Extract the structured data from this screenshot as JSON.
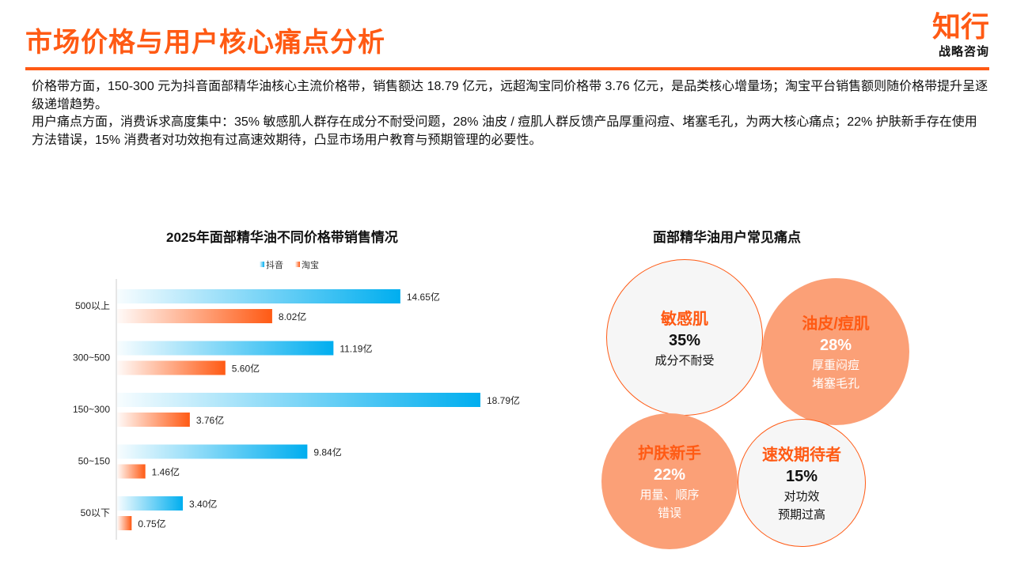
{
  "header": {
    "title": "市场价格与用户核心痛点分析",
    "logo_main": "知行",
    "logo_sub": "战略咨询"
  },
  "summary": [
    "价格带方面，150-300 元为抖音面部精华油核心主流价格带，销售额达 18.79 亿元，远超淘宝同价格带 3.76 亿元，是品类核心增量场；淘宝平台销售额则随价格带提升呈逐级递增趋势。",
    "用户痛点方面，消费诉求高度集中：35% 敏感肌人群存在成分不耐受问题，28% 油皮 / 痘肌人群反馈产品厚重闷痘、堵塞毛孔，为两大核心痛点；22% 护肤新手存在使用方法错误，15% 消费者对功效抱有过高速效期待，凸显市场用户教育与预期管理的必要性。"
  ],
  "chart_data": {
    "type": "bar",
    "orientation": "horizontal",
    "title": "2025年面部精华油不同价格带销售情况",
    "categories": [
      "500以上",
      "300~500",
      "150~300",
      "50~150",
      "50以下"
    ],
    "unit": "亿",
    "series": [
      {
        "name": "抖音",
        "values": [
          14.65,
          11.19,
          18.79,
          9.84,
          3.4
        ],
        "labels": [
          "14.65亿",
          "11.19亿",
          "18.79亿",
          "9.84亿",
          "3.40亿"
        ],
        "color": "#00AEEF"
      },
      {
        "name": "淘宝",
        "values": [
          8.02,
          5.6,
          3.76,
          1.46,
          0.75
        ],
        "labels": [
          "8.02亿",
          "5.60亿",
          "3.76亿",
          "1.46亿",
          "0.75亿"
        ],
        "color": "#FF5A14"
      }
    ],
    "legend": "top-center",
    "grid": false,
    "xlim": [
      0,
      18.79
    ]
  },
  "pain_points": {
    "title": "面部精华油用户常见痛点",
    "items": [
      {
        "name": "敏感肌",
        "percent": "35%",
        "desc": [
          "成分不耐受"
        ],
        "style": "light"
      },
      {
        "name": "油皮/痘肌",
        "percent": "28%",
        "desc": [
          "厚重闷痘",
          "堵塞毛孔"
        ],
        "style": "fill"
      },
      {
        "name": "护肤新手",
        "percent": "22%",
        "desc": [
          "用量、顺序",
          "错误"
        ],
        "style": "fill"
      },
      {
        "name": "速效期待者",
        "percent": "15%",
        "desc": [
          "对功效",
          "预期过高"
        ],
        "style": "light"
      }
    ]
  }
}
